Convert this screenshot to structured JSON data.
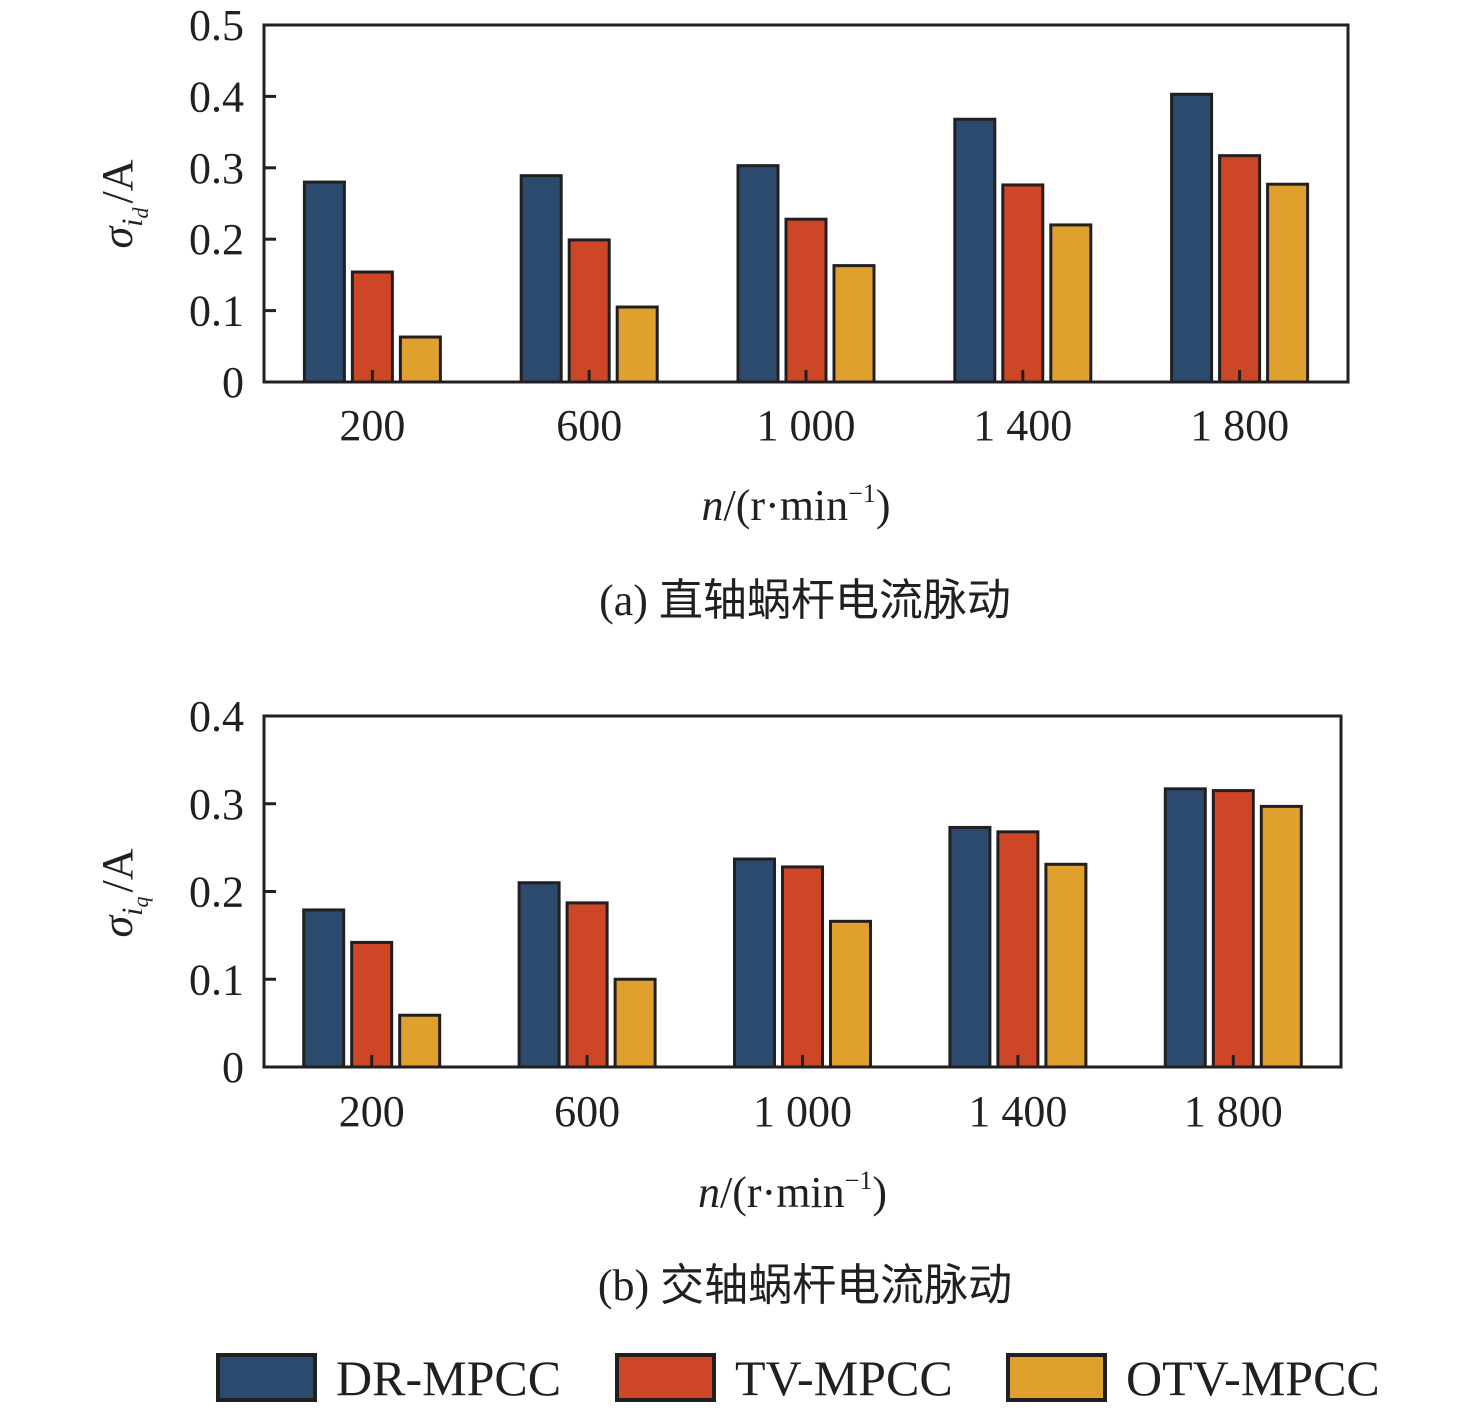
{
  "colors": {
    "DR-MPCC": "#2c4a6e",
    "TV-MPCC": "#cd4726",
    "OTV-MPCC": "#dfa02e",
    "axis": "#231f20"
  },
  "legend": {
    "items": [
      "DR-MPCC",
      "TV-MPCC",
      "OTV-MPCC"
    ],
    "placement": "bottom-center"
  },
  "chart_data": [
    {
      "type": "bar",
      "title": "",
      "caption": "(a) 直轴蜗杆电流脉动",
      "ylabel_main": "σ",
      "ylabel_sub": "i",
      "ylabel_subsub": "d",
      "ylabel_unit": "/A",
      "xlabel_italic": "n",
      "xlabel_rest": "/(r·min",
      "xlabel_sup": "−1",
      "xlabel_close": ")",
      "categories": [
        "200",
        "600",
        "1 000",
        "1 400",
        "1 800"
      ],
      "ylim": [
        0,
        0.5
      ],
      "yticks": [
        0,
        0.1,
        0.2,
        0.3,
        0.4,
        0.5
      ],
      "ytick_labels": [
        "0",
        "0.1",
        "0.2",
        "0.3",
        "0.4",
        "0.5"
      ],
      "grid": false,
      "series": [
        {
          "name": "DR-MPCC",
          "values": [
            0.28,
            0.289,
            0.303,
            0.368,
            0.403
          ]
        },
        {
          "name": "TV-MPCC",
          "values": [
            0.154,
            0.199,
            0.228,
            0.276,
            0.317
          ]
        },
        {
          "name": "OTV-MPCC",
          "values": [
            0.063,
            0.105,
            0.163,
            0.22,
            0.277
          ]
        }
      ]
    },
    {
      "type": "bar",
      "title": "",
      "caption": "(b) 交轴蜗杆电流脉动",
      "ylabel_main": "σ",
      "ylabel_sub": "i",
      "ylabel_subsub": "q",
      "ylabel_unit": "/A",
      "xlabel_italic": "n",
      "xlabel_rest": "/(r·min",
      "xlabel_sup": "−1",
      "xlabel_close": ")",
      "categories": [
        "200",
        "600",
        "1 000",
        "1 400",
        "1 800"
      ],
      "ylim": [
        0,
        0.4
      ],
      "yticks": [
        0,
        0.1,
        0.2,
        0.3,
        0.4
      ],
      "ytick_labels": [
        "0",
        "0.1",
        "0.2",
        "0.3",
        "0.4"
      ],
      "grid": false,
      "series": [
        {
          "name": "DR-MPCC",
          "values": [
            0.179,
            0.21,
            0.237,
            0.273,
            0.317
          ]
        },
        {
          "name": "TV-MPCC",
          "values": [
            0.142,
            0.187,
            0.228,
            0.268,
            0.315
          ]
        },
        {
          "name": "OTV-MPCC",
          "values": [
            0.059,
            0.1,
            0.166,
            0.231,
            0.297
          ]
        }
      ]
    }
  ]
}
